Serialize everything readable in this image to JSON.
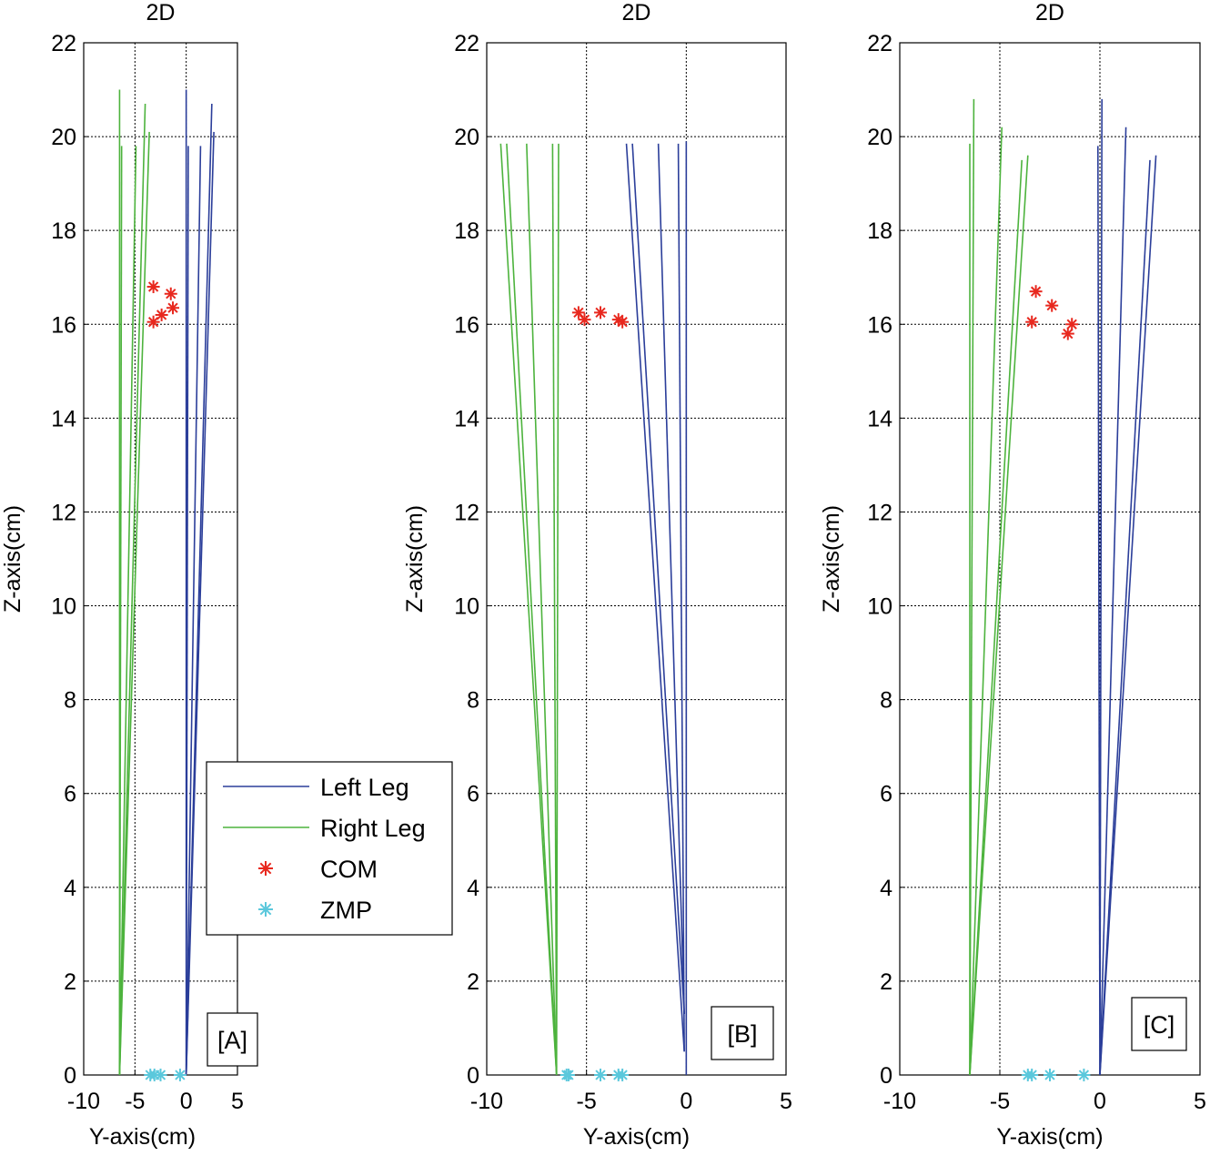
{
  "chart_data": [
    {
      "type": "line",
      "panel": "A",
      "title": "2D",
      "xlabel": "Y-axis(cm)",
      "ylabel": "Z-axis(cm)",
      "xlim": [
        -10,
        5
      ],
      "ylim": [
        0,
        22
      ],
      "xticks": [
        -10,
        -5,
        0,
        5
      ],
      "yticks": [
        0,
        2,
        4,
        6,
        8,
        10,
        12,
        14,
        16,
        18,
        20,
        22
      ],
      "grid": true,
      "panel_label": "[A]",
      "series": [
        {
          "name": "Left Leg",
          "color": "#2b3e9a",
          "kind": "segments",
          "segments": [
            [
              [
                0,
                0
              ],
              [
                0,
                21
              ]
            ],
            [
              [
                0,
                0
              ],
              [
                0.2,
                19.8
              ]
            ],
            [
              [
                0,
                0
              ],
              [
                1.4,
                19.8
              ]
            ],
            [
              [
                0,
                0
              ],
              [
                2.5,
                20.7
              ]
            ],
            [
              [
                0,
                0
              ],
              [
                2.7,
                20.1
              ]
            ]
          ]
        },
        {
          "name": "Right Leg",
          "color": "#4db33d",
          "kind": "segments",
          "segments": [
            [
              [
                -6.5,
                0
              ],
              [
                -6.5,
                21.0
              ]
            ],
            [
              [
                -6.5,
                0
              ],
              [
                -6.3,
                19.8
              ]
            ],
            [
              [
                -6.5,
                0
              ],
              [
                -4.9,
                19.8
              ]
            ],
            [
              [
                -6.5,
                0
              ],
              [
                -4.0,
                20.7
              ]
            ],
            [
              [
                -6.5,
                0
              ],
              [
                -3.6,
                20.1
              ]
            ]
          ]
        },
        {
          "name": "COM",
          "color": "#e8281e",
          "marker": "*",
          "points": [
            [
              -3.2,
              16.8
            ],
            [
              -3.2,
              16.05
            ],
            [
              -2.4,
              16.2
            ],
            [
              -1.5,
              16.65
            ],
            [
              -1.3,
              16.35
            ]
          ]
        },
        {
          "name": "ZMP",
          "color": "#5bc8dc",
          "marker": "*",
          "points": [
            [
              -3.5,
              0
            ],
            [
              -3.1,
              0
            ],
            [
              -2.5,
              0
            ],
            [
              -0.6,
              0
            ]
          ]
        }
      ]
    },
    {
      "type": "line",
      "panel": "B",
      "title": "2D",
      "xlabel": "Y-axis(cm)",
      "ylabel": "Z-axis(cm)",
      "xlim": [
        -10,
        5
      ],
      "ylim": [
        0,
        22
      ],
      "xticks": [
        -10,
        -5,
        0,
        5
      ],
      "yticks": [
        0,
        2,
        4,
        6,
        8,
        10,
        12,
        14,
        16,
        18,
        20,
        22
      ],
      "grid": true,
      "panel_label": "[B]",
      "series": [
        {
          "name": "Left Leg",
          "color": "#2b3e9a",
          "kind": "segments",
          "segments": [
            [
              [
                0,
                0
              ],
              [
                0,
                19.9
              ]
            ],
            [
              [
                -0.1,
                0.5
              ],
              [
                -0.4,
                19.85
              ]
            ],
            [
              [
                -0.1,
                1.3
              ],
              [
                -1.4,
                19.85
              ]
            ],
            [
              [
                -0.1,
                1.3
              ],
              [
                -2.7,
                19.85
              ]
            ],
            [
              [
                -0.1,
                0.5
              ],
              [
                -3.0,
                19.85
              ]
            ]
          ]
        },
        {
          "name": "Right Leg",
          "color": "#4db33d",
          "kind": "segments",
          "segments": [
            [
              [
                -6.5,
                0
              ],
              [
                -6.4,
                19.85
              ]
            ],
            [
              [
                -6.5,
                0
              ],
              [
                -6.7,
                19.85
              ]
            ],
            [
              [
                -6.5,
                0
              ],
              [
                -8.0,
                19.85
              ]
            ],
            [
              [
                -6.5,
                0
              ],
              [
                -9.0,
                19.85
              ]
            ],
            [
              [
                -6.5,
                0
              ],
              [
                -9.3,
                19.85
              ]
            ]
          ]
        },
        {
          "name": "COM",
          "color": "#e8281e",
          "marker": "*",
          "points": [
            [
              -5.4,
              16.25
            ],
            [
              -5.1,
              16.1
            ],
            [
              -4.3,
              16.25
            ],
            [
              -3.4,
              16.1
            ],
            [
              -3.2,
              16.05
            ]
          ]
        },
        {
          "name": "ZMP",
          "color": "#5bc8dc",
          "marker": "*",
          "points": [
            [
              -6.0,
              0
            ],
            [
              -5.9,
              0
            ],
            [
              -4.3,
              0
            ],
            [
              -3.4,
              0
            ],
            [
              -3.2,
              0
            ]
          ]
        }
      ]
    },
    {
      "type": "line",
      "panel": "C",
      "title": "2D",
      "xlabel": "Y-axis(cm)",
      "ylabel": "Z-axis(cm)",
      "xlim": [
        -10,
        5
      ],
      "ylim": [
        0,
        22
      ],
      "xticks": [
        -10,
        -5,
        0,
        5
      ],
      "yticks": [
        0,
        2,
        4,
        6,
        8,
        10,
        12,
        14,
        16,
        18,
        20,
        22
      ],
      "grid": true,
      "panel_label": "[C]",
      "series": [
        {
          "name": "Left Leg",
          "color": "#2b3e9a",
          "kind": "segments",
          "segments": [
            [
              [
                0,
                0
              ],
              [
                0.1,
                20.8
              ]
            ],
            [
              [
                0,
                0
              ],
              [
                -0.1,
                19.8
              ]
            ],
            [
              [
                0,
                0
              ],
              [
                1.3,
                20.2
              ]
            ],
            [
              [
                0,
                0
              ],
              [
                2.5,
                19.5
              ]
            ],
            [
              [
                0,
                0
              ],
              [
                2.8,
                19.6
              ]
            ]
          ]
        },
        {
          "name": "Right Leg",
          "color": "#4db33d",
          "kind": "segments",
          "segments": [
            [
              [
                -6.5,
                0
              ],
              [
                -6.5,
                19.85
              ]
            ],
            [
              [
                -6.5,
                0
              ],
              [
                -6.3,
                20.8
              ]
            ],
            [
              [
                -6.5,
                0
              ],
              [
                -4.9,
                20.2
              ]
            ],
            [
              [
                -6.5,
                0
              ],
              [
                -3.9,
                19.5
              ]
            ],
            [
              [
                -6.5,
                0
              ],
              [
                -3.6,
                19.6
              ]
            ]
          ]
        },
        {
          "name": "COM",
          "color": "#e8281e",
          "marker": "*",
          "points": [
            [
              -3.2,
              16.7
            ],
            [
              -3.4,
              16.05
            ],
            [
              -2.4,
              16.4
            ],
            [
              -1.4,
              16.0
            ],
            [
              -1.6,
              15.8
            ]
          ]
        },
        {
          "name": "ZMP",
          "color": "#5bc8dc",
          "marker": "*",
          "points": [
            [
              -3.6,
              0
            ],
            [
              -3.4,
              0
            ],
            [
              -2.5,
              0
            ],
            [
              -0.8,
              0
            ]
          ]
        }
      ]
    }
  ],
  "legend": {
    "items": [
      {
        "label": "Left Leg",
        "color": "#2b3e9a",
        "kind": "line"
      },
      {
        "label": "Right Leg",
        "color": "#4db33d",
        "kind": "line"
      },
      {
        "label": "COM",
        "color": "#e8281e",
        "kind": "marker"
      },
      {
        "label": "ZMP",
        "color": "#5bc8dc",
        "kind": "marker"
      }
    ]
  }
}
